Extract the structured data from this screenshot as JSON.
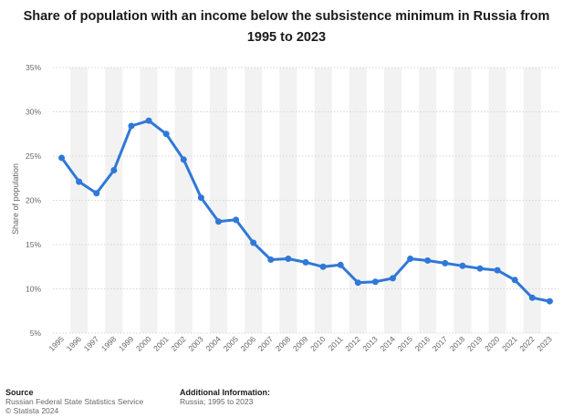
{
  "title_line1": "Share of population with an income below the subsistence minimum in Russia from",
  "title_line2": "1995 to 2023",
  "footer": {
    "source_heading": "Source",
    "source_line1": "Russian Federal State Statistics Service",
    "source_line2": "© Statista 2024",
    "info_heading": "Additional Information:",
    "info_line1": "Russia; 1995 to 2023"
  },
  "colors": {
    "line": "#2f78d8",
    "band": "#f2f2f2",
    "grid": "#d6d6d6"
  },
  "chart_data": {
    "type": "line",
    "ylabel": "Share of population",
    "ylim": [
      5,
      35
    ],
    "yticks": [
      5,
      10,
      15,
      20,
      25,
      30,
      35
    ],
    "ytick_labels": [
      "5%",
      "10%",
      "15%",
      "20%",
      "25%",
      "30%",
      "35%"
    ],
    "categories": [
      "1995",
      "1996",
      "1997",
      "1998",
      "1999",
      "2000",
      "2001",
      "2002",
      "2003",
      "2004",
      "2005",
      "2006",
      "2007",
      "2008",
      "2009",
      "2010",
      "2011",
      "2012",
      "2013",
      "2014",
      "2015",
      "2016",
      "2017",
      "2018",
      "2019",
      "2020",
      "2021",
      "2022",
      "2023"
    ],
    "values": [
      24.8,
      22.1,
      20.8,
      23.4,
      28.4,
      29.0,
      27.5,
      24.6,
      20.3,
      17.6,
      17.8,
      15.2,
      13.3,
      13.4,
      13.0,
      12.5,
      12.7,
      10.7,
      10.8,
      11.2,
      13.4,
      13.2,
      12.9,
      12.6,
      12.3,
      12.1,
      11.0,
      9.0,
      8.6
    ],
    "grid": true,
    "legend": "none"
  }
}
